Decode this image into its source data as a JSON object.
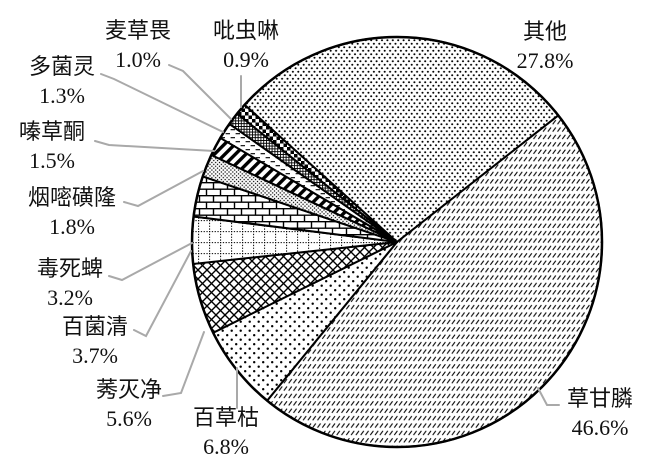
{
  "figure": {
    "background": "#ffffff",
    "text_color": "#111111"
  },
  "chart_data": {
    "type": "pie",
    "title": "",
    "unit": "%",
    "direction": "clockwise",
    "start_angle_deg": -48,
    "legend_position": "none",
    "label_style": "outside-with-leader-lines",
    "outline_color": "#000000",
    "leader_line_color": "#a9a9a9",
    "slices": [
      {
        "id": "other",
        "label": "其他",
        "value": 27.8,
        "pct_label": "27.8%",
        "pattern": "fine-dots"
      },
      {
        "id": "glyphosate",
        "label": "草甘膦",
        "value": 46.6,
        "pct_label": "46.6%",
        "pattern": "diagonal-dash-rows"
      },
      {
        "id": "paraquat",
        "label": "百草枯",
        "value": 6.8,
        "pct_label": "6.8%",
        "pattern": "sparse-dots"
      },
      {
        "id": "ametryn",
        "label": "莠灭净",
        "value": 5.6,
        "pct_label": "5.6%",
        "pattern": "diagonal-crosshatch"
      },
      {
        "id": "chlorothalonil",
        "label": "百菌清",
        "value": 3.7,
        "pct_label": "3.7%",
        "pattern": "dotted-grid"
      },
      {
        "id": "chlorpyrifos",
        "label": "毒死蜱",
        "value": 3.2,
        "pct_label": "3.2%",
        "pattern": "brick"
      },
      {
        "id": "nicosulfuron",
        "label": "烟嘧磺隆",
        "value": 1.8,
        "pct_label": "1.8%",
        "pattern": "dense-speckle"
      },
      {
        "id": "metribuzin",
        "label": "嗪草酮",
        "value": 1.5,
        "pct_label": "1.5%",
        "pattern": "bold-diagonal-stripes"
      },
      {
        "id": "carbendazim",
        "label": "多菌灵",
        "value": 1.3,
        "pct_label": "1.3%",
        "pattern": "horizontal-dashes"
      },
      {
        "id": "dicamba",
        "label": "麦草畏",
        "value": 1.0,
        "pct_label": "1.0%",
        "pattern": "fine-grid"
      },
      {
        "id": "imidacloprid",
        "label": "吡虫啉",
        "value": 0.9,
        "pct_label": "0.9%",
        "pattern": "checkerboard"
      }
    ]
  }
}
